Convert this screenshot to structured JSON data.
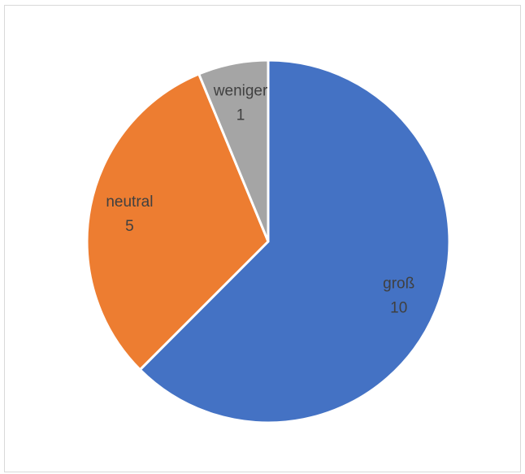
{
  "chart_data": {
    "type": "pie",
    "categories": [
      "groß",
      "neutral",
      "weniger"
    ],
    "values": [
      10,
      5,
      1
    ],
    "colors": [
      "#4472c4",
      "#ed7d31",
      "#a5a5a5"
    ],
    "data_labels": [
      {
        "category": "groß",
        "value": "10"
      },
      {
        "category": "neutral",
        "value": "5"
      },
      {
        "category": "weniger",
        "value": "1"
      }
    ],
    "start_angle_deg": 0,
    "direction": "clockwise",
    "legend": "none"
  }
}
